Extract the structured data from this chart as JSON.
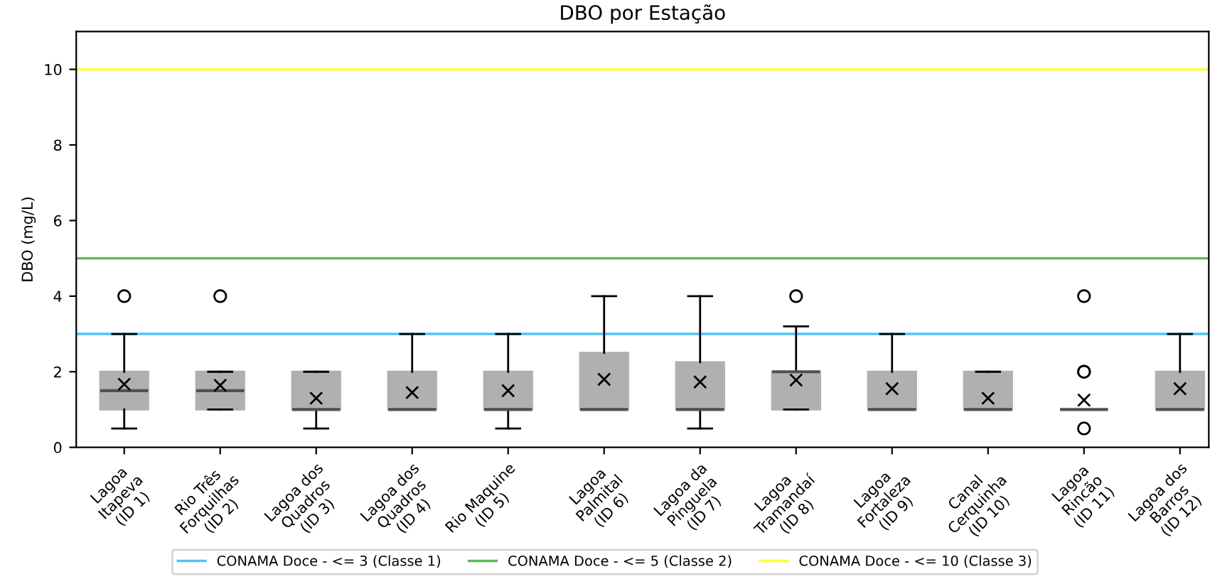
{
  "chart_data": {
    "type": "box",
    "title": "DBO por Estação",
    "ylabel": "DBO (mg/L)",
    "categories": [
      "Lagoa\nItapeva\n(ID 1)",
      "Rio Três\nForquilhas\n(ID 2)",
      "Lagoa dos\nQuadros\n(ID 3)",
      "Lagoa dos\nQuadros\n(ID 4)",
      "Rio Maquine\n(ID 5)",
      "Lagoa\nPalmital\n(ID 6)",
      "Lagoa da\nPinguela\n(ID 7)",
      "Lagoa\nTramandaí\n(ID 8)",
      "Lagoa\nFortaleza\n(ID 9)",
      "Canal\nCerquinha\n(ID 10)",
      "Lagoa\nRincão\n(ID 11)",
      "Lagoa dos\nBarros\n(ID 12)"
    ],
    "series": [
      {
        "color": "#b0b0b0",
        "boxes": [
          {
            "low": 0.5,
            "q1": 1,
            "median": 1.5,
            "q3": 2,
            "high": 3,
            "mean": 1.67,
            "outliers": [
              4
            ]
          },
          {
            "low": 1,
            "q1": 1,
            "median": 1.5,
            "q3": 2,
            "high": 2,
            "mean": 1.64,
            "outliers": [
              4
            ]
          },
          {
            "low": 0.5,
            "q1": 1,
            "median": 1,
            "q3": 2,
            "high": 2,
            "mean": 1.3
          },
          {
            "low": 1,
            "q1": 1,
            "median": 1,
            "q3": 2,
            "high": 3,
            "mean": 1.45
          },
          {
            "low": 0.5,
            "q1": 1,
            "median": 1,
            "q3": 2,
            "high": 3,
            "mean": 1.5
          },
          {
            "low": 1,
            "q1": 1,
            "median": 1,
            "q3": 2.5,
            "high": 4,
            "mean": 1.8
          },
          {
            "low": 0.5,
            "q1": 1,
            "median": 1,
            "q3": 2.25,
            "high": 4,
            "mean": 1.73
          },
          {
            "low": 1,
            "q1": 1,
            "median": 2,
            "q3": 2,
            "high": 3.2,
            "mean": 1.78,
            "outliers": [
              4
            ]
          },
          {
            "low": 1,
            "q1": 1,
            "median": 1,
            "q3": 2,
            "high": 3,
            "mean": 1.55
          },
          {
            "low": 1,
            "q1": 1,
            "median": 1,
            "q3": 2,
            "high": 2,
            "mean": 1.3
          },
          {
            "low": 1,
            "q1": 1,
            "median": 1,
            "q3": 1,
            "high": 1,
            "mean": 1.25,
            "outliers": [
              4,
              2,
              2,
              0.5
            ]
          },
          {
            "low": 1,
            "q1": 1,
            "median": 1,
            "q3": 2,
            "high": 3,
            "mean": 1.55
          }
        ]
      }
    ],
    "ylim": [
      0,
      11
    ],
    "yticks": [
      0,
      2,
      4,
      6,
      8,
      10
    ],
    "ref_lines": [
      {
        "axis": "y",
        "value": 3,
        "label": "CONAMA Doce - <= 3 (Classe 1)",
        "color": "#4fc3f7"
      },
      {
        "axis": "y",
        "value": 5,
        "label": "CONAMA Doce - <= 5 (Classe 2)",
        "color": "#5cb85c"
      },
      {
        "axis": "y",
        "value": 10,
        "label": "CONAMA Doce - <= 10 (Classe 3)",
        "color": "#ffff33"
      }
    ],
    "legend": "bottom",
    "grid": false
  }
}
